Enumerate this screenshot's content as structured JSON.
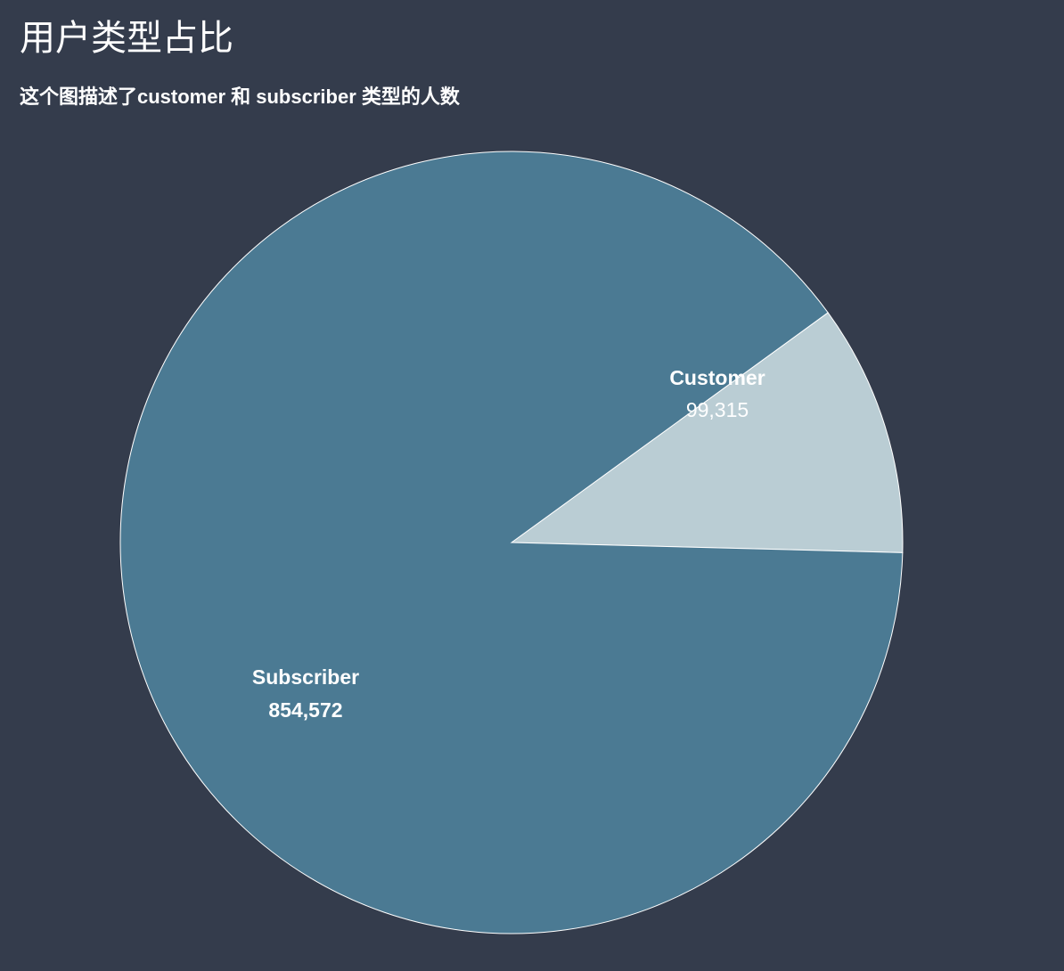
{
  "title": "用户类型占比",
  "subtitle": "这个图描述了customer 和 subscriber 类型的人数",
  "chart_data": {
    "type": "pie",
    "labels": [
      "Customer",
      "Subscriber"
    ],
    "values": [
      99315,
      854572
    ],
    "value_labels": [
      "99,315",
      "854,572"
    ],
    "colors": [
      "#bacdd4",
      "#4b7a93"
    ],
    "stroke_color": "#ffffff",
    "legend": "none"
  }
}
